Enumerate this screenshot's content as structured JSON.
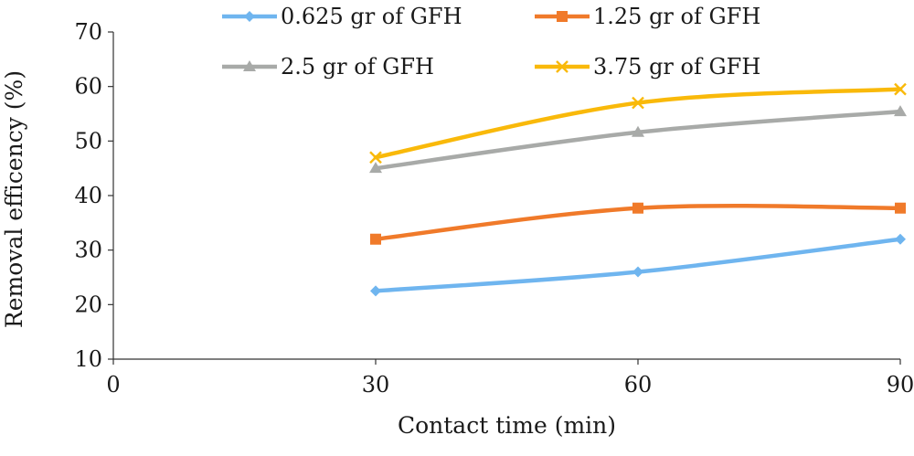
{
  "chart_data": {
    "type": "line",
    "xlabel": "Contact time (min)",
    "ylabel": "Removal efficency (%)",
    "xlim": [
      0,
      90
    ],
    "ylim": [
      10,
      70
    ],
    "xticks": [
      0,
      30,
      60,
      90
    ],
    "yticks": [
      10,
      20,
      30,
      40,
      50,
      60,
      70
    ],
    "grid": false,
    "legend_position": "top",
    "x": [
      30,
      60,
      90
    ],
    "series": [
      {
        "name": "0.625 gr of GFH",
        "values": [
          22.5,
          26,
          32
        ],
        "color": "#6fb5ef",
        "marker": "diamond"
      },
      {
        "name": "1.25 gr of GFH",
        "values": [
          32,
          37.7,
          37.7
        ],
        "color": "#f07a2a",
        "marker": "square"
      },
      {
        "name": "2.5 gr of GFH",
        "values": [
          45,
          51.6,
          55.4
        ],
        "color": "#a8aaa8",
        "marker": "triangle"
      },
      {
        "name": "3.75 gr of GFH",
        "values": [
          47,
          57,
          59.5
        ],
        "color": "#f9b90a",
        "marker": "x"
      }
    ]
  }
}
